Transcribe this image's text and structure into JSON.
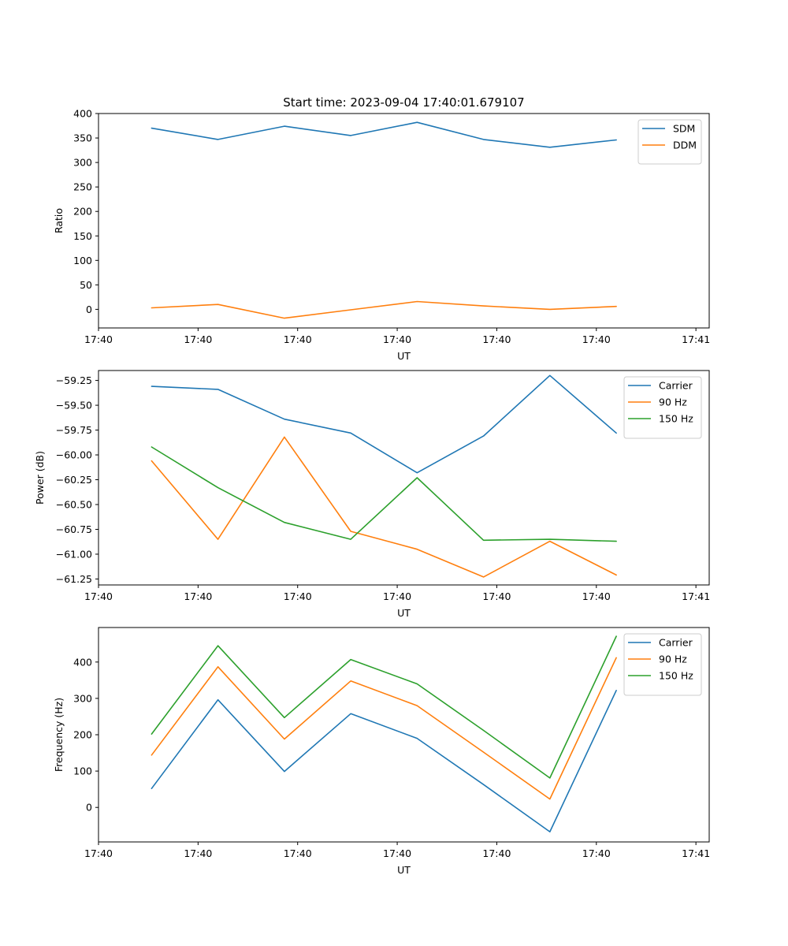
{
  "chart_data": [
    {
      "type": "line",
      "title": "Start time: 2023-09-04 17:40:01.679107",
      "xlabel": "UT",
      "ylabel": "Ratio",
      "x": [
        1,
        2,
        3,
        4,
        5,
        6,
        7,
        8
      ],
      "xlim": [
        0.2,
        9.4
      ],
      "xticks": [
        0.2,
        1.7,
        3.2,
        4.7,
        6.2,
        7.7,
        9.2
      ],
      "xtick_labels": [
        "17:40",
        "17:40",
        "17:40",
        "17:40",
        "17:40",
        "17:40",
        "17:41"
      ],
      "ylim": [
        -38,
        400
      ],
      "yticks": [
        0,
        50,
        100,
        150,
        200,
        250,
        300,
        350,
        400
      ],
      "ytick_labels": [
        "0",
        "50",
        "100",
        "150",
        "200",
        "250",
        "300",
        "350",
        "400"
      ],
      "legend": "top-right",
      "series": [
        {
          "name": "SDM",
          "color": "#1f77b4",
          "values": [
            370,
            347,
            374,
            355,
            382,
            347,
            331,
            346
          ]
        },
        {
          "name": "DDM",
          "color": "#ff7f0e",
          "values": [
            3,
            10,
            -18,
            -1,
            16,
            7,
            0,
            6
          ]
        }
      ]
    },
    {
      "type": "line",
      "title": "",
      "xlabel": "UT",
      "ylabel": "Power (dB)",
      "x": [
        1,
        2,
        3,
        4,
        5,
        6,
        7,
        8
      ],
      "xlim": [
        0.2,
        9.4
      ],
      "xticks": [
        0.2,
        1.7,
        3.2,
        4.7,
        6.2,
        7.7,
        9.2
      ],
      "xtick_labels": [
        "17:40",
        "17:40",
        "17:40",
        "17:40",
        "17:40",
        "17:40",
        "17:41"
      ],
      "ylim": [
        -61.31,
        -59.15
      ],
      "yticks": [
        -61.25,
        -61.0,
        -60.75,
        -60.5,
        -60.25,
        -60.0,
        -59.75,
        -59.5,
        -59.25
      ],
      "ytick_labels": [
        "−61.25",
        "−61.00",
        "−60.75",
        "−60.50",
        "−60.25",
        "−60.00",
        "−59.75",
        "−59.50",
        "−59.25"
      ],
      "legend": "top-right",
      "series": [
        {
          "name": "Carrier",
          "color": "#1f77b4",
          "values": [
            -59.31,
            -59.34,
            -59.64,
            -59.78,
            -60.18,
            -59.81,
            -59.2,
            -59.78
          ]
        },
        {
          "name": "90 Hz",
          "color": "#ff7f0e",
          "values": [
            -60.06,
            -60.85,
            -59.82,
            -60.77,
            -60.95,
            -61.23,
            -60.87,
            -61.21
          ]
        },
        {
          "name": "150 Hz",
          "color": "#2ca02c",
          "values": [
            -59.92,
            -60.33,
            -60.68,
            -60.85,
            -60.23,
            -60.86,
            -60.85,
            -60.87
          ]
        }
      ]
    },
    {
      "type": "line",
      "title": "",
      "xlabel": "UT",
      "ylabel": "Frequency (Hz)",
      "x": [
        1,
        2,
        3,
        4,
        5,
        6,
        7,
        8
      ],
      "xlim": [
        0.2,
        9.4
      ],
      "xticks": [
        0.2,
        1.7,
        3.2,
        4.7,
        6.2,
        7.7,
        9.2
      ],
      "xtick_labels": [
        "17:40",
        "17:40",
        "17:40",
        "17:40",
        "17:40",
        "17:40",
        "17:41"
      ],
      "ylim": [
        -95,
        495
      ],
      "yticks": [
        0,
        100,
        200,
        300,
        400
      ],
      "ytick_labels": [
        "0",
        "100",
        "200",
        "300",
        "400"
      ],
      "legend": "top-right",
      "series": [
        {
          "name": "Carrier",
          "color": "#1f77b4",
          "values": [
            52,
            296,
            99,
            258,
            190,
            63,
            -67,
            322
          ]
        },
        {
          "name": "90 Hz",
          "color": "#ff7f0e",
          "values": [
            144,
            387,
            188,
            348,
            280,
            152,
            23,
            412
          ]
        },
        {
          "name": "150 Hz",
          "color": "#2ca02c",
          "values": [
            202,
            445,
            247,
            407,
            340,
            212,
            81,
            471
          ]
        }
      ]
    }
  ]
}
